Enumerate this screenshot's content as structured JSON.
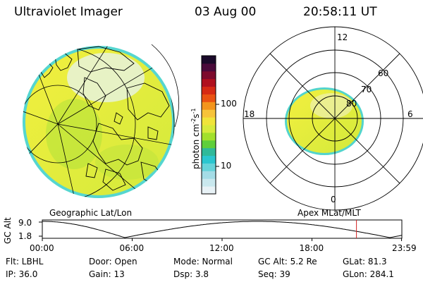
{
  "header": {
    "instrument": "Ultraviolet Imager",
    "date": "03 Aug 00",
    "time": "20:58:11 UT"
  },
  "colorbar": {
    "unit": "photon cm",
    "unit_exp1": "-2",
    "unit_mid": "s",
    "unit_exp2": "-1",
    "tick_100": "100",
    "tick_10": "10",
    "colors": [
      "#e8f2f6",
      "#c9e8ee",
      "#a4dce6",
      "#67d3d9",
      "#2bc6cf",
      "#2fb99a",
      "#5fcf3a",
      "#a3e02c",
      "#d7ea3c",
      "#f0e43a",
      "#f6c33a",
      "#f3951c",
      "#ea5212",
      "#d62a14",
      "#b0101e",
      "#7d0b2d",
      "#4a0a3b",
      "#1a0a2a"
    ]
  },
  "left_panel": {
    "caption": "Geographic Lat/Lon"
  },
  "right_panel": {
    "caption": "Apex MLat/MLT",
    "mlt_12": "12",
    "mlt_18": "18",
    "mlt_6": "6",
    "mlt_0": "0",
    "lat_60": "60",
    "lat_70": "70",
    "lat_80": "80"
  },
  "altitude_plot": {
    "ylabel": "GC Alt",
    "ymax": "9.0",
    "ymin": "1.8",
    "x_ticks": [
      "00:00",
      "06:00",
      "12:00",
      "18:00",
      "23:59"
    ],
    "marker_time_hours": 20.97
  },
  "footer": {
    "flt": "Flt: LBHL",
    "door": "Door: Open",
    "mode": "Mode: Normal",
    "gc_alt": "GC Alt: 5.2 Re",
    "glat": "GLat:  81.3",
    "ip": "IP: 36.0",
    "gain": "Gain: 13",
    "dsp": "Dsp:    3.8",
    "seq": "Seq: 39",
    "glon": "GLon: 284.1"
  }
}
